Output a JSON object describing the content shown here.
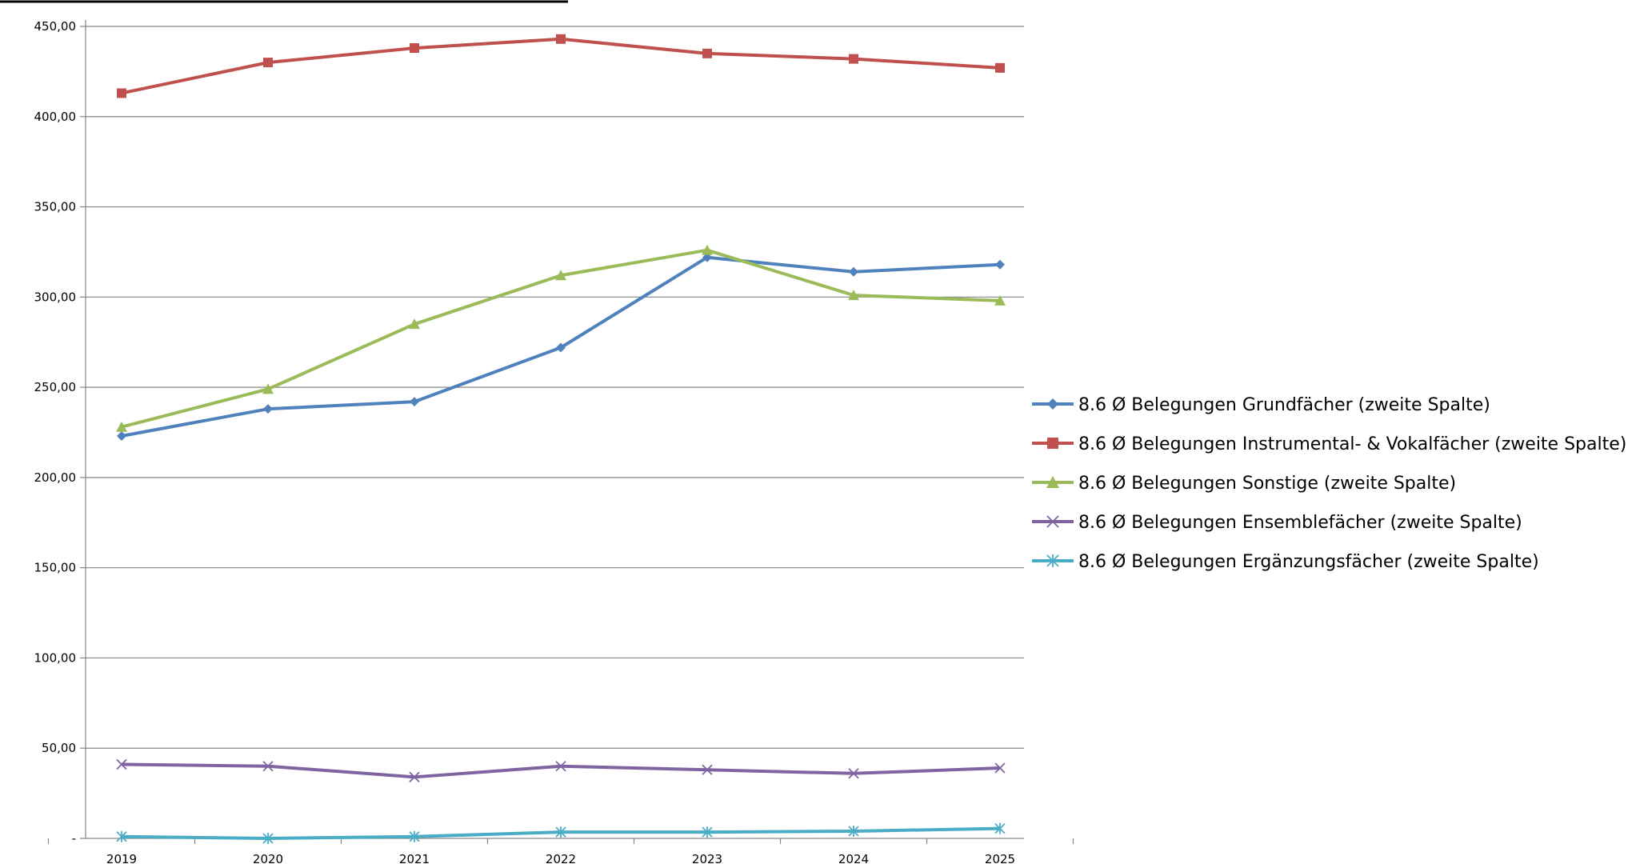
{
  "chart_data": {
    "type": "line",
    "x": [
      "2019",
      "2020",
      "2021",
      "2022",
      "2023",
      "2024",
      "2025"
    ],
    "ylim": [
      0,
      450
    ],
    "yticks": [
      0,
      50,
      100,
      150,
      200,
      250,
      300,
      350,
      400,
      450
    ],
    "ytick_labels": [
      "-",
      "50,00",
      "100,00",
      "150,00",
      "200,00",
      "250,00",
      "300,00",
      "350,00",
      "400,00",
      "450,00"
    ],
    "grid": true,
    "legend_position": "right",
    "series": [
      {
        "name": "8.6 Ø Belegungen Grundfächer (zweite Spalte)",
        "color": "#4F81BD",
        "marker": "diamond",
        "values": [
          223,
          238,
          242,
          272,
          322,
          314,
          318
        ]
      },
      {
        "name": "8.6 Ø Belegungen Instrumental- & Vokalfächer (zweite Spalte)",
        "color": "#C0504D",
        "marker": "square",
        "values": [
          413,
          430,
          438,
          443,
          435,
          432,
          427
        ]
      },
      {
        "name": "8.6 Ø Belegungen Sonstige (zweite Spalte)",
        "color": "#9BBB59",
        "marker": "triangle",
        "values": [
          228,
          249,
          285,
          312,
          326,
          301,
          298
        ]
      },
      {
        "name": "8.6 Ø Belegungen Ensemblefächer (zweite Spalte)",
        "color": "#8064A2",
        "marker": "x",
        "values": [
          41,
          40,
          34,
          40,
          38,
          36,
          39
        ]
      },
      {
        "name": "8.6 Ø Belegungen Ergänzungsfächer (zweite Spalte)",
        "color": "#4BACC6",
        "marker": "star",
        "values": [
          1,
          0,
          1,
          3.5,
          3.5,
          4,
          5.5
        ]
      }
    ]
  }
}
